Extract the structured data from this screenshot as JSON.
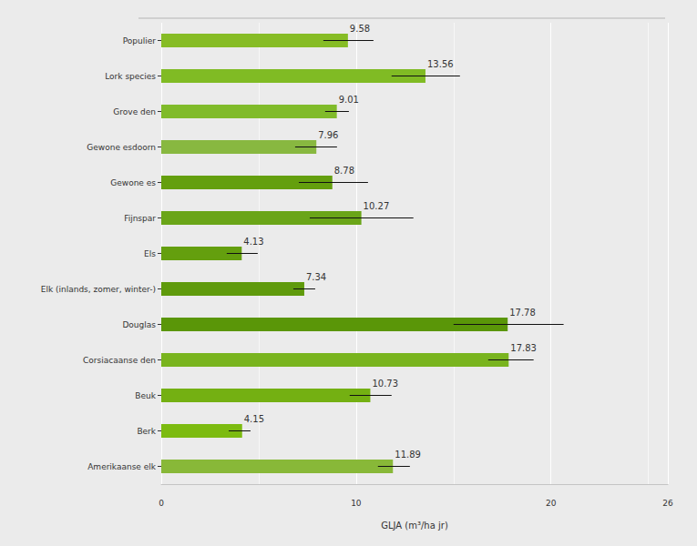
{
  "chart_data": {
    "type": "bar",
    "orientation": "horizontal",
    "x_label": "GLJA (m³/ha jr)",
    "categories": [
      "Populier",
      "Lork species",
      "Grove den",
      "Gewone esdoorn",
      "Gewone es",
      "Fijnspar",
      "Els",
      "Elk (inlands, zomer, winter-)",
      "Douglas",
      "Corsiacaanse den",
      "Beuk",
      "Berk",
      "Amerikaanse elk"
    ],
    "values": [
      9.58,
      13.56,
      9.01,
      7.96,
      8.78,
      10.27,
      4.13,
      7.34,
      17.78,
      17.83,
      10.73,
      4.15,
      11.89
    ],
    "error_low": [
      8.32,
      11.82,
      8.41,
      6.87,
      7.06,
      7.62,
      3.36,
      6.78,
      15.0,
      16.78,
      9.67,
      3.46,
      11.12
    ],
    "error_high": [
      10.89,
      15.33,
      9.63,
      9.02,
      10.61,
      12.94,
      4.95,
      7.9,
      20.65,
      19.11,
      11.82,
      4.58,
      12.76
    ],
    "colors": [
      "#86bc25",
      "#80bb24",
      "#80bb2a",
      "#88b840",
      "#649f0e",
      "#6aa518",
      "#649f0e",
      "#5f9a0c",
      "#5a9608",
      "#79b41e",
      "#74b012",
      "#7cbb10",
      "#88b838"
    ],
    "xlim": [
      0,
      26
    ],
    "xticks": [
      0,
      10,
      20
    ],
    "grid": true,
    "data_labels": true
  }
}
